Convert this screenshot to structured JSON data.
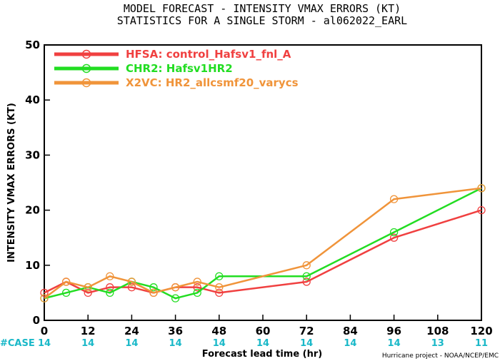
{
  "title_line1": "MODEL FORECAST - INTENSITY VMAX ERRORS (KT)",
  "title_line2": "STATISTICS FOR A SINGLE STORM - al062022_EARL",
  "credit": "Hurricane project - NOAA/NCEP/EMC",
  "case_label": "#CASE",
  "colors": {
    "case_text": "#19b8c8",
    "case_label": "#19b8c8",
    "axis": "#000000"
  },
  "chart_data": {
    "type": "line",
    "title": "MODEL FORECAST - INTENSITY VMAX ERRORS (KT)",
    "subtitle": "STATISTICS FOR A SINGLE STORM - al062022_EARL",
    "xlabel": "Forecast lead time (hr)",
    "ylabel": "INTENSITY VMAX ERRORS (KT)",
    "xlim": [
      0,
      120
    ],
    "ylim": [
      0,
      50
    ],
    "x_ticks": [
      0,
      12,
      24,
      36,
      48,
      60,
      72,
      84,
      96,
      108,
      120
    ],
    "y_ticks": [
      0,
      10,
      20,
      30,
      40,
      50
    ],
    "grid": false,
    "legend_position": "top-left",
    "cases": {
      "x": [
        0,
        12,
        24,
        36,
        48,
        60,
        72,
        84,
        96,
        108,
        120
      ],
      "values": [
        "14",
        "14",
        "14",
        "14",
        "14",
        "14",
        "14",
        "14",
        "14",
        "13",
        "11"
      ]
    },
    "series": [
      {
        "name": "HFSA: control_Hafsv1_fnl_A",
        "color": "#f04040",
        "x": [
          0,
          6,
          12,
          18,
          24,
          30,
          36,
          42,
          48,
          72,
          96,
          120
        ],
        "y": [
          5,
          7,
          5,
          6,
          6,
          5,
          6,
          6,
          5,
          7,
          15,
          20
        ]
      },
      {
        "name": "CHR2: Hafsv1HR2",
        "color": "#22dd22",
        "x": [
          0,
          6,
          12,
          18,
          24,
          30,
          36,
          42,
          48,
          72,
          96,
          120
        ],
        "y": [
          4,
          5,
          6,
          5,
          7,
          6,
          4,
          5,
          8,
          8,
          16,
          24
        ]
      },
      {
        "name": "X2VC: HR2_allcsmf20_varycs",
        "color": "#f0943a",
        "x": [
          0,
          6,
          12,
          18,
          24,
          30,
          36,
          42,
          48,
          72,
          96,
          120
        ],
        "y": [
          4,
          7,
          6,
          8,
          7,
          5,
          6,
          7,
          6,
          10,
          22,
          24
        ]
      }
    ]
  }
}
